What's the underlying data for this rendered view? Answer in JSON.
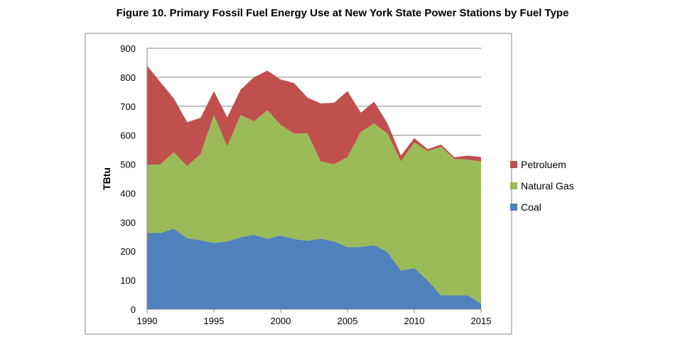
{
  "chart_data": {
    "type": "area",
    "stacked": true,
    "title": "Figure 10. Primary Fossil Fuel Energy Use at New York State Power Stations by Fuel Type",
    "xlabel": "",
    "ylabel": "TBtu",
    "ylim": [
      0,
      900
    ],
    "yticks": [
      "0",
      "100",
      "200",
      "300",
      "400",
      "500",
      "600",
      "700",
      "800",
      "900"
    ],
    "xlim": [
      1990,
      2015
    ],
    "xticks": [
      "1990",
      "1995",
      "2000",
      "2005",
      "2010",
      "2015"
    ],
    "grid": true,
    "legend_position": "right",
    "x": [
      1990,
      1991,
      1992,
      1993,
      1994,
      1995,
      1996,
      1997,
      1998,
      1999,
      2000,
      2001,
      2002,
      2003,
      2004,
      2005,
      2006,
      2007,
      2008,
      2009,
      2010,
      2011,
      2012,
      2013,
      2014,
      2015
    ],
    "series": [
      {
        "name": "Coal",
        "color": "#4f81bd",
        "values": [
          263,
          263,
          278,
          245,
          238,
          229,
          234,
          248,
          257,
          243,
          254,
          242,
          236,
          243,
          234,
          214,
          215,
          221,
          197,
          133,
          142,
          100,
          48,
          48,
          48,
          20
        ]
      },
      {
        "name": "Natural Gas",
        "color": "#9bbb59",
        "values": [
          235,
          237,
          264,
          249,
          297,
          441,
          328,
          422,
          391,
          443,
          382,
          364,
          371,
          267,
          266,
          311,
          397,
          419,
          408,
          377,
          433,
          445,
          512,
          470,
          468,
          490
        ]
      },
      {
        "name": "Petroluem",
        "color": "#c0504d",
        "values": [
          342,
          283,
          185,
          151,
          125,
          82,
          100,
          87,
          152,
          137,
          156,
          174,
          123,
          200,
          212,
          227,
          66,
          76,
          35,
          20,
          15,
          7,
          8,
          6,
          14,
          15
        ]
      }
    ]
  }
}
